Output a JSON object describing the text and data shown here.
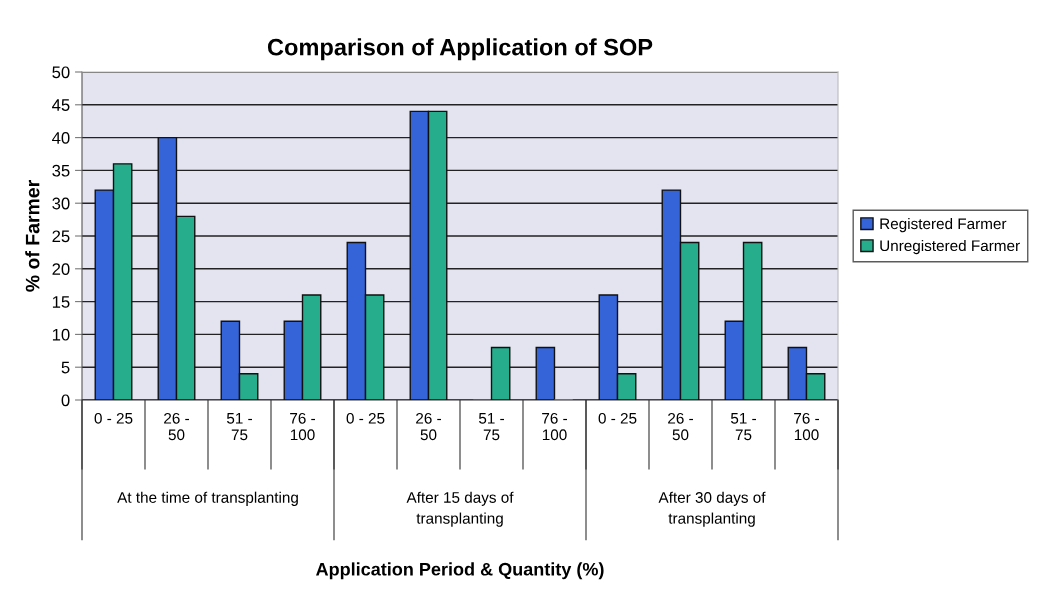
{
  "chart_data": {
    "type": "bar",
    "title": "Comparison of Application of SOP",
    "ylabel": "% of Farmer",
    "categories": [
      "0 - 25",
      "26 - 50",
      "51 - 75",
      "76 - 100",
      "0 - 25",
      "26 - 50",
      "51 - 75",
      "76 - 100",
      "0 - 25",
      "26 - 50",
      "51 - 75",
      "76 - 100"
    ],
    "series": [
      {
        "name": "Registered Farmer",
        "color": "#3464d8",
        "values": [
          32,
          40,
          12,
          12,
          24,
          44,
          0,
          8,
          16,
          32,
          12,
          8
        ]
      },
      {
        "name": "Unregistered Farmer",
        "color": "#26ad8c",
        "values": [
          36,
          28,
          4,
          16,
          16,
          44,
          8,
          0,
          4,
          24,
          24,
          4
        ]
      }
    ],
    "ylim": [
      0,
      50
    ],
    "yticks": [
      0,
      5,
      10,
      15,
      20,
      25,
      30,
      35,
      40,
      45,
      50
    ],
    "grid": "y",
    "legend": "right",
    "annotations": [
      "At the time of transplanting",
      "After 15 days of transplanting",
      "After 30 days of transplanting",
      "Application Period & Quantity (%)"
    ]
  }
}
